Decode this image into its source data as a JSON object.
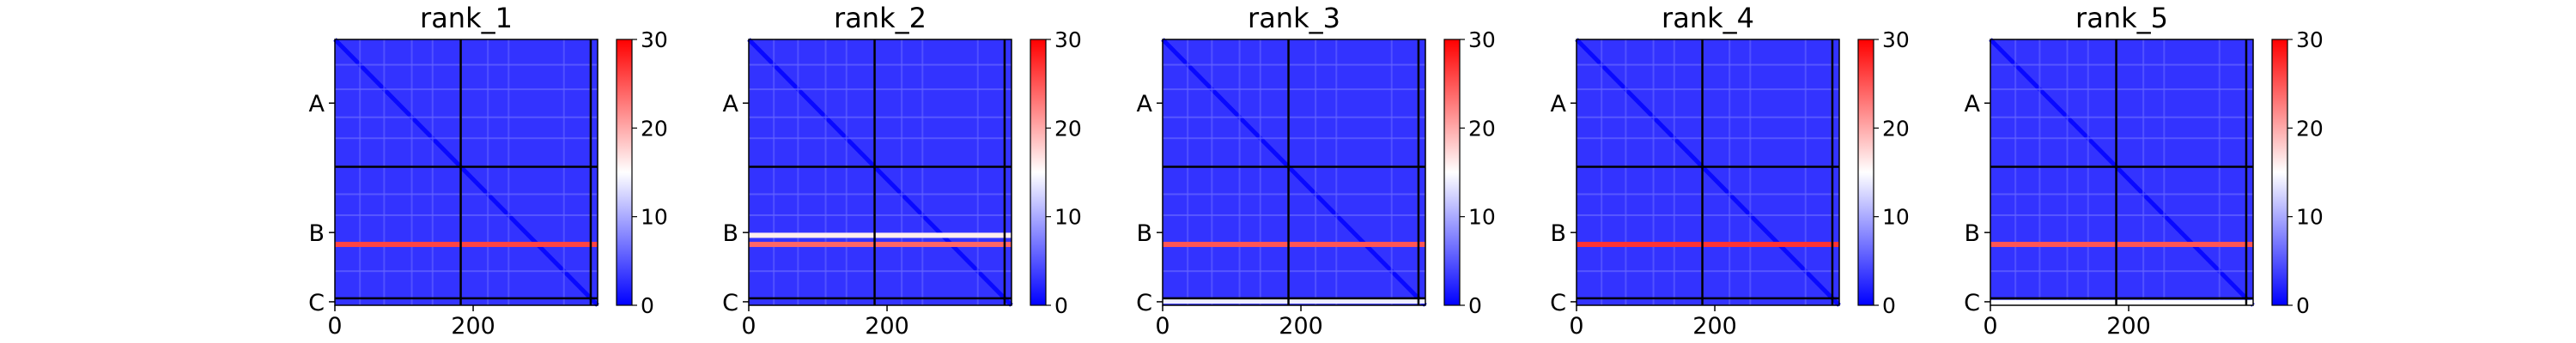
{
  "chart_data": [
    {
      "type": "heatmap",
      "title": "rank_1",
      "x_ticks": [
        0,
        200
      ],
      "y_ticks": [
        "A",
        "B",
        "C"
      ],
      "colorbar": {
        "ticks": [
          0,
          10,
          20,
          30
        ],
        "range": [
          0,
          30
        ],
        "colors": [
          "#0000ff",
          "#ffffff",
          "#ff0000"
        ]
      },
      "n_residues": 380,
      "chain_boundaries": [
        182,
        370
      ],
      "hot_bands": [
        {
          "y": 293,
          "value": 26
        }
      ]
    },
    {
      "type": "heatmap",
      "title": "rank_2",
      "x_ticks": [
        0,
        200
      ],
      "y_ticks": [
        "A",
        "B",
        "C"
      ],
      "colorbar": {
        "ticks": [
          0,
          10,
          20,
          30
        ],
        "range": [
          0,
          30
        ],
        "colors": [
          "#0000ff",
          "#ffffff",
          "#ff0000"
        ]
      },
      "n_residues": 380,
      "chain_boundaries": [
        182,
        370
      ],
      "hot_bands": [
        {
          "y": 280,
          "value": 16
        },
        {
          "y": 293,
          "value": 24
        }
      ]
    },
    {
      "type": "heatmap",
      "title": "rank_3",
      "x_ticks": [
        0,
        200
      ],
      "y_ticks": [
        "A",
        "B",
        "C"
      ],
      "colorbar": {
        "ticks": [
          0,
          10,
          20,
          30
        ],
        "range": [
          0,
          30
        ],
        "colors": [
          "#0000ff",
          "#ffffff",
          "#ff0000"
        ]
      },
      "n_residues": 380,
      "chain_boundaries": [
        182,
        370
      ],
      "hot_bands": [
        {
          "y": 293,
          "value": 25
        },
        {
          "y": 374,
          "value": 14
        }
      ]
    },
    {
      "type": "heatmap",
      "title": "rank_4",
      "x_ticks": [
        0,
        200
      ],
      "y_ticks": [
        "A",
        "B",
        "C"
      ],
      "colorbar": {
        "ticks": [
          0,
          10,
          20,
          30
        ],
        "range": [
          0,
          30
        ],
        "colors": [
          "#0000ff",
          "#ffffff",
          "#ff0000"
        ]
      },
      "n_residues": 380,
      "chain_boundaries": [
        182,
        370
      ],
      "hot_bands": [
        {
          "y": 293,
          "value": 27
        }
      ]
    },
    {
      "type": "heatmap",
      "title": "rank_5",
      "x_ticks": [
        0,
        200
      ],
      "y_ticks": [
        "A",
        "B",
        "C"
      ],
      "colorbar": {
        "ticks": [
          0,
          10,
          20,
          30
        ],
        "range": [
          0,
          30
        ],
        "colors": [
          "#0000ff",
          "#ffffff",
          "#ff0000"
        ]
      },
      "n_residues": 380,
      "chain_boundaries": [
        182,
        370
      ],
      "hot_bands": [
        {
          "y": 293,
          "value": 25
        },
        {
          "y": 376,
          "value": 15
        }
      ]
    }
  ]
}
